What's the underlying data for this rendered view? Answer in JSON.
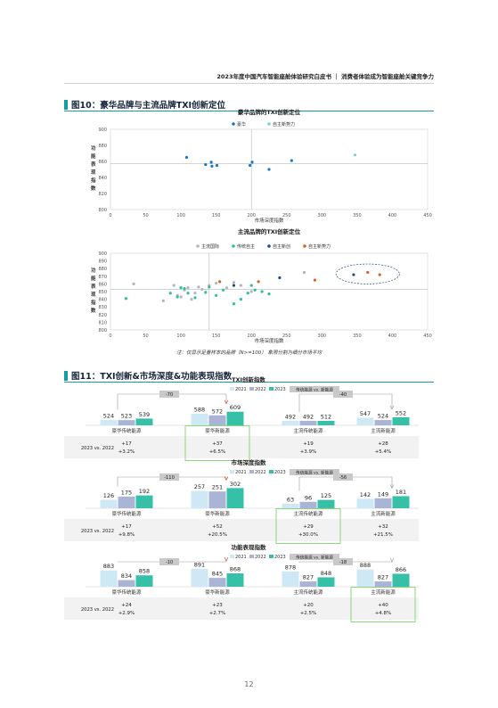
{
  "header": {
    "text": "2023年度中国汽车智能座舱体验研究白皮书 ｜ 消费者体验成为智能座舱关键竞争力"
  },
  "page_number": "12",
  "fig10": {
    "title": "图10：豪华品牌与主流品牌TXI创新定位"
  },
  "fig11": {
    "title": "图11：TXI创新&市场深度&功能表现指数"
  },
  "note": "注：仅显示足量样本的品牌（N>=100） 象限分割为细分市场平均",
  "colors": {
    "accent": "#1a9ba0",
    "c2021": "#cfe8f6",
    "c2022": "#a9b4d6",
    "c2023": "#35c0a7"
  },
  "chart_data": [
    {
      "type": "scatter",
      "title": "豪华品牌的TXI创新定位",
      "xlabel": "市场深度指数",
      "ylabel": "功能表现指数",
      "xlim": [
        0,
        450
      ],
      "ylim": [
        800,
        900
      ],
      "xticks": [
        "0",
        "50",
        "100",
        "150",
        "200",
        "250",
        "300",
        "350",
        "400",
        "450"
      ],
      "yticks": [
        "800",
        "820",
        "840",
        "860",
        "880",
        "900"
      ],
      "xdiv": 200,
      "ydiv": 857,
      "legend": [
        "豪华",
        "自主新势力"
      ],
      "series": [
        {
          "name": "豪华",
          "color": "#1778c4",
          "points": [
            [
              108,
              865
            ],
            [
              135,
              856
            ],
            [
              143,
              859
            ],
            [
              144,
              854
            ],
            [
              151,
              855
            ],
            [
              198,
              855
            ],
            [
              201,
              859
            ],
            [
              225,
              850
            ],
            [
              257,
              861
            ]
          ]
        },
        {
          "name": "自主新势力",
          "color": "#7fd3c8",
          "points": [
            [
              347,
              868
            ]
          ]
        }
      ]
    },
    {
      "type": "scatter",
      "title": "主流品牌的TXI创新定位",
      "xlabel": "市场深度指数",
      "ylabel": "功能表现指数",
      "xlim": [
        0,
        450
      ],
      "ylim": [
        800,
        900
      ],
      "xticks": [
        "0",
        "50",
        "100",
        "150",
        "200",
        "250",
        "300",
        "350",
        "400",
        "450"
      ],
      "yticks": [
        "800",
        "810",
        "820",
        "830",
        "840",
        "850",
        "860",
        "870",
        "880",
        "890",
        "900"
      ],
      "xdiv": 140,
      "ydiv": 853,
      "legend": [
        "主流国际",
        "传统自主",
        "自主新创",
        "自主新势力"
      ],
      "series": [
        {
          "name": "主流国际",
          "color": "#b5b5b5",
          "points": [
            [
              33,
              860
            ],
            [
              75,
              838
            ],
            [
              90,
              858
            ],
            [
              95,
              845
            ],
            [
              100,
              843
            ],
            [
              105,
              852
            ],
            [
              110,
              855
            ],
            [
              115,
              840
            ],
            [
              120,
              848
            ],
            [
              125,
              856
            ],
            [
              130,
              853
            ],
            [
              140,
              858
            ],
            [
              150,
              861
            ],
            [
              165,
              855
            ],
            [
              175,
              862
            ],
            [
              185,
              858
            ],
            [
              200,
              850
            ],
            [
              275,
              875
            ]
          ]
        },
        {
          "name": "传统自主",
          "color": "#2fbf9b",
          "points": [
            [
              22,
              841
            ],
            [
              85,
              848
            ],
            [
              95,
              843
            ],
            [
              100,
              855
            ],
            [
              105,
              854
            ],
            [
              110,
              848
            ],
            [
              120,
              842
            ],
            [
              135,
              849
            ],
            [
              140,
              856
            ],
            [
              150,
              845
            ],
            [
              160,
              852
            ],
            [
              175,
              834
            ],
            [
              185,
              840
            ],
            [
              195,
              848
            ],
            [
              200,
              858
            ],
            [
              205,
              852
            ],
            [
              215,
              850
            ],
            [
              225,
              847
            ]
          ]
        },
        {
          "name": "自主新创",
          "color": "#1d4f8c",
          "points": [
            [
              175,
              858
            ],
            [
              240,
              868
            ],
            [
              345,
              872
            ]
          ]
        },
        {
          "name": "自主新势力",
          "color": "#d4612a",
          "points": [
            [
              155,
              863
            ],
            [
              210,
              863
            ],
            [
              290,
              865
            ],
            [
              365,
              875
            ],
            [
              382,
              872
            ]
          ]
        }
      ],
      "highlight": {
        "cx": 365,
        "cy": 873,
        "rx": 45,
        "ry": 13
      }
    },
    {
      "type": "bar",
      "title": "TXI创新指数",
      "legend": [
        "2021",
        "2022",
        "2023",
        "传统能源 vs. 新能源"
      ],
      "categories": [
        "豪华传统能源",
        "豪华新能源",
        "主流传统能源",
        "主流新能源"
      ],
      "series": [
        {
          "name": "2021",
          "values": [
            524,
            588,
            492,
            547
          ]
        },
        {
          "name": "2022",
          "values": [
            523,
            572,
            492,
            524
          ]
        },
        {
          "name": "2023",
          "values": [
            539,
            609,
            512,
            552
          ]
        }
      ],
      "gaps": [
        "-70",
        "-40"
      ],
      "compare_label": "2023 vs. 2022",
      "deltas": [
        [
          "+17",
          "+3.2%"
        ],
        [
          "+37",
          "+6.5%"
        ],
        [
          "+19",
          "+3.9%"
        ],
        [
          "+28",
          "+5.4%"
        ]
      ]
    },
    {
      "type": "bar",
      "title": "市场深度指数",
      "legend": [
        "2021",
        "2022",
        "2023",
        "传统能源 vs. 新能源"
      ],
      "categories": [
        "豪华传统能源",
        "豪华新能源",
        "主流传统能源",
        "主流新能源"
      ],
      "series": [
        {
          "name": "2021",
          "values": [
            126,
            257,
            63,
            142
          ]
        },
        {
          "name": "2022",
          "values": [
            175,
            251,
            96,
            149
          ]
        },
        {
          "name": "2023",
          "values": [
            192,
            302,
            125,
            181
          ]
        }
      ],
      "gaps": [
        "-110",
        "-56"
      ],
      "compare_label": "2023 vs. 2022",
      "deltas": [
        [
          "+17",
          "+9.8%"
        ],
        [
          "+52",
          "+20.5%"
        ],
        [
          "+29",
          "+30.0%"
        ],
        [
          "+32",
          "+21.5%"
        ]
      ]
    },
    {
      "type": "bar",
      "title": "功能表现指数",
      "legend": [
        "2021",
        "2022",
        "2023",
        "传统能源 vs. 新能源"
      ],
      "categories": [
        "豪华传统能源",
        "豪华新能源",
        "主流传统能源",
        "主流新能源"
      ],
      "series": [
        {
          "name": "2021",
          "values": [
            883,
            891,
            878,
            888
          ]
        },
        {
          "name": "2022",
          "values": [
            834,
            845,
            827,
            827
          ]
        },
        {
          "name": "2023",
          "values": [
            858,
            868,
            848,
            866
          ]
        }
      ],
      "gaps": [
        "-10",
        "-18"
      ],
      "compare_label": "2023 vs. 2022",
      "deltas": [
        [
          "+24",
          "+2.9%"
        ],
        [
          "+23",
          "+2.7%"
        ],
        [
          "+20",
          "+2.5%"
        ],
        [
          "+40",
          "+4.8%"
        ]
      ]
    }
  ]
}
